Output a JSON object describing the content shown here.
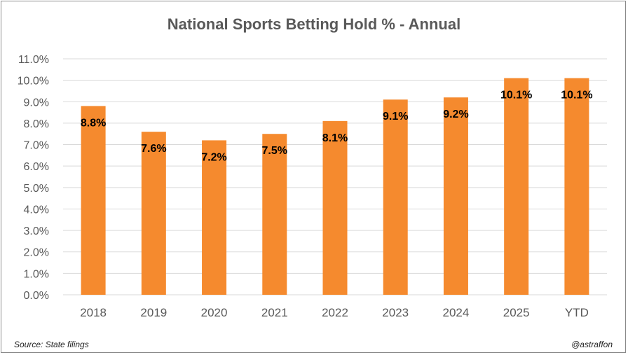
{
  "colors": {
    "bar": "#F58A2E",
    "grid": "#D9D9D9",
    "axis_text": "#595959",
    "label": "#000000"
  },
  "chart_data": {
    "type": "bar",
    "title": "National Sports Betting Hold % - Annual",
    "categories": [
      "2018",
      "2019",
      "2020",
      "2021",
      "2022",
      "2023",
      "2024",
      "2025",
      "YTD"
    ],
    "values": [
      8.8,
      7.6,
      7.2,
      7.5,
      8.1,
      9.1,
      9.2,
      10.1,
      10.1
    ],
    "data_labels": [
      "8.8%",
      "7.6%",
      "7.2%",
      "7.5%",
      "8.1%",
      "9.1%",
      "9.2%",
      "10.1%",
      "10.1%"
    ],
    "y_ticks": [
      "0.0%",
      "1.0%",
      "2.0%",
      "3.0%",
      "4.0%",
      "5.0%",
      "6.0%",
      "7.0%",
      "8.0%",
      "9.0%",
      "10.0%",
      "11.0%"
    ],
    "ylim": [
      0,
      11
    ],
    "grid": true
  },
  "footer": {
    "source": "Source: State filings",
    "handle": "@astraffon"
  }
}
